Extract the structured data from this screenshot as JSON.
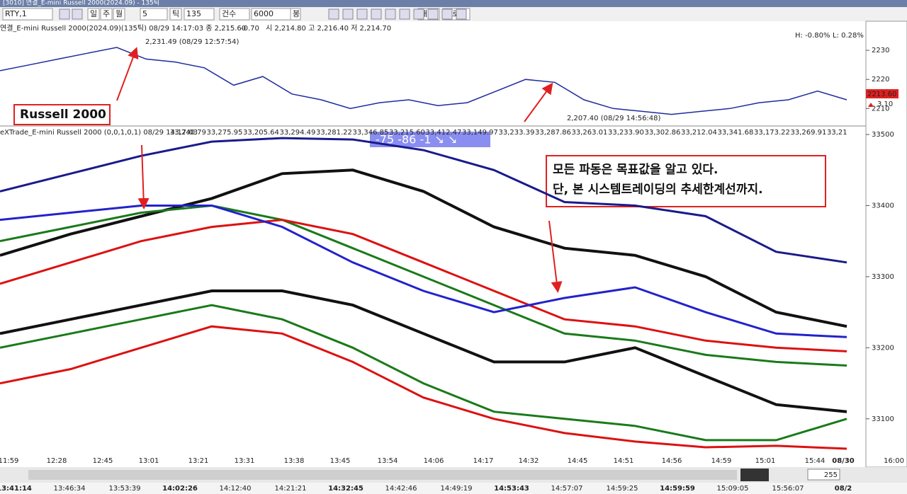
{
  "window": {
    "title": "[3010] 연결_E-mini Russell 2000(2024.09) - 135틱"
  },
  "toolbar": {
    "symbol": "RTY,1",
    "periods": [
      "일",
      "주",
      "월"
    ],
    "period_value": "5",
    "tick_button": "틱",
    "tick_value": "135",
    "count_label": "건수",
    "count_value": "6000",
    "count_unit": "봉",
    "buttons": [
      "개별",
      "업로드"
    ]
  },
  "price_header": {
    "name": "연결_E-mini Russell 2000(2024.09)(135틱) 08/29 14:17:03  종 2,215.60",
    "change": "-0.70",
    "ohl": "시 2,214.80 고 2,216.40 저 2,214.70",
    "high_pct": "H: -0.80%",
    "low_pct": "L: 0.28%"
  },
  "indicator_header": {
    "name": "eXTrade_E-mini Russell 2000  (0,0,1,0,1) 08/29 14:17:03",
    "values": [
      {
        "text": "33,240.79",
        "color": "#1a7a1a"
      },
      {
        "text": "33,275.95",
        "color": "#cc0000"
      },
      {
        "text": "33,205.64",
        "color": "#cc0000"
      },
      {
        "text": "33,294.49",
        "color": "#222222"
      },
      {
        "text": "33,281.22",
        "color": "#222222"
      },
      {
        "text": "33,346.85",
        "color": "#222222"
      },
      {
        "text": "33,215.60",
        "color": "#222222"
      },
      {
        "text": "33,412.47",
        "color": "#222222"
      },
      {
        "text": "33,149.97",
        "color": "#222222"
      },
      {
        "text": "33,233.39",
        "color": "#cc0000"
      },
      {
        "text": "33,287.86",
        "color": "#222222"
      },
      {
        "text": "33,263.01",
        "color": "#222222"
      },
      {
        "text": "33,233.90",
        "color": "#222222"
      },
      {
        "text": "33,302.86",
        "color": "#222222"
      },
      {
        "text": "33,212.04",
        "color": "#222222"
      },
      {
        "text": "33,341.68",
        "color": "#222222"
      },
      {
        "text": "33,173.22",
        "color": "#222222"
      },
      {
        "text": "33,269.91",
        "color": "#222222"
      },
      {
        "text": "33,21",
        "color": "#222222"
      }
    ],
    "badge": "-75  -86  -1  ↘  ↘"
  },
  "chart_data": [
    {
      "type": "line",
      "color": "#1f2a9c",
      "values": [
        2223,
        2225,
        2227,
        2229,
        2231,
        2227,
        2226,
        2224,
        2218,
        2221,
        2215,
        2213,
        2210,
        2212,
        2213,
        2211,
        2212,
        2216,
        2220,
        2219,
        2213,
        2210,
        2209,
        2208,
        2209,
        2210,
        2212,
        2213,
        2216,
        2213
      ],
      "ylim": [
        2204,
        2240
      ],
      "yticks": [
        2210,
        2220,
        2230
      ],
      "annotations": [
        "Russell 2000",
        "2,231.49 (08/29 12:57:54)",
        "2,207.40 (08/29 14:56:48)"
      ],
      "last_price": "2213.60",
      "last_change": "3.10"
    },
    {
      "type": "line",
      "series": [
        {
          "color": "#1a1a8c",
          "values": [
            33420,
            33445,
            33470,
            33490,
            33495,
            33493,
            33478,
            33450,
            33405,
            33400,
            33385,
            33335,
            33320
          ]
        },
        {
          "color": "#111111",
          "values": [
            33330,
            33360,
            33385,
            33410,
            33445,
            33450,
            33420,
            33370,
            33340,
            33330,
            33300,
            33250,
            33230
          ]
        },
        {
          "color": "#1a7a1a",
          "values": [
            33350,
            33370,
            33390,
            33400,
            33380,
            33340,
            33300,
            33260,
            33220,
            33210,
            33190,
            33180,
            33175
          ]
        },
        {
          "color": "#dd1111",
          "values": [
            33290,
            33320,
            33350,
            33370,
            33380,
            33360,
            33320,
            33280,
            33240,
            33230,
            33210,
            33200,
            33195
          ]
        },
        {
          "color": "#111111",
          "values": [
            33220,
            33240,
            33260,
            33280,
            33280,
            33260,
            33220,
            33180,
            33180,
            33200,
            33160,
            33120,
            33110
          ]
        },
        {
          "color": "#2222cc",
          "values": [
            33380,
            33390,
            33400,
            33400,
            33370,
            33320,
            33280,
            33250,
            33270,
            33285,
            33250,
            33220,
            33215
          ]
        },
        {
          "color": "#1a7a1a",
          "values": [
            33200,
            33220,
            33240,
            33260,
            33240,
            33200,
            33150,
            33110,
            33100,
            33090,
            33070,
            33070,
            33100
          ]
        },
        {
          "color": "#dd1111",
          "values": [
            33150,
            33170,
            33200,
            33230,
            33220,
            33180,
            33130,
            33100,
            33080,
            33068,
            33060,
            33062,
            33058
          ]
        }
      ],
      "ylim": [
        33050,
        33510
      ],
      "yticks": [
        33100,
        33200,
        33300,
        33400,
        33500
      ],
      "annotations": [
        "모든 파동은 목표값을 알고 있다.",
        "단, 본 시스템트레이딩의 추세한계선까지."
      ],
      "time_labels": [
        "11:59",
        "12:28",
        "12:45",
        "13:01",
        "13:21",
        "13:31",
        "13:38",
        "13:45",
        "13:54",
        "14:06",
        "14:17",
        "14:32",
        "14:45",
        "14:51",
        "14:56",
        "14:59",
        "15:01",
        "15:44",
        "08/30"
      ]
    }
  ],
  "navigator": {
    "times": [
      "13:41:14",
      "13:46:34",
      "13:53:39",
      "14:02:26",
      "14:12:40",
      "14:21:21",
      "14:32:45",
      "14:42:46",
      "14:49:19",
      "14:53:43",
      "14:57:07",
      "14:59:25",
      "14:59:59",
      "15:09:05",
      "15:56:07",
      "08/2"
    ],
    "zoom": "255",
    "end_time": "16:00"
  }
}
